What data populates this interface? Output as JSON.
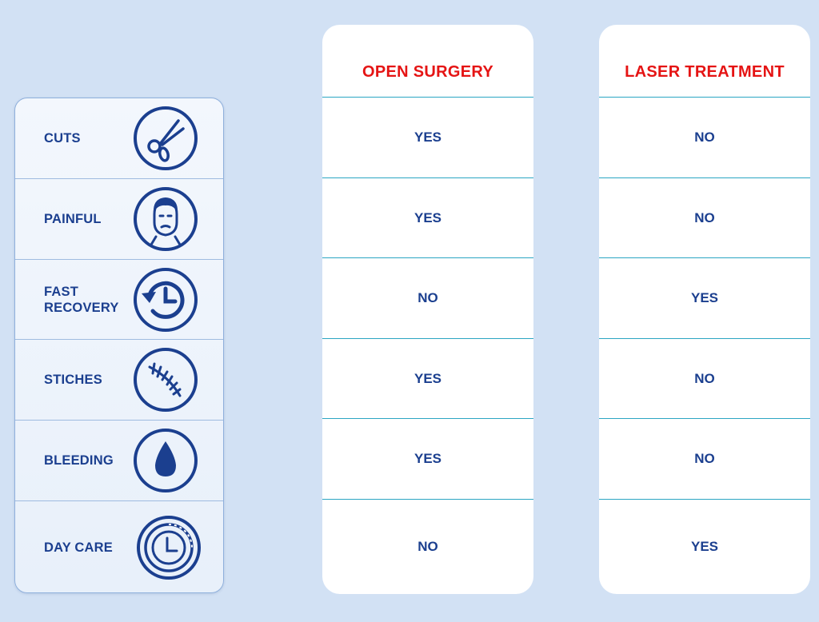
{
  "features": [
    {
      "label": "CUTS",
      "icon": "scissors-icon"
    },
    {
      "label": "PAINFUL",
      "icon": "pained-face-icon"
    },
    {
      "label": "FAST\nRECOVERY",
      "icon": "recovery-clock-icon"
    },
    {
      "label": "STICHES",
      "icon": "stitches-icon"
    },
    {
      "label": "BLEEDING",
      "icon": "blood-drop-icon"
    },
    {
      "label": "DAY CARE",
      "icon": "day-care-clock-icon"
    }
  ],
  "columns": [
    {
      "title": "OPEN SURGERY",
      "values": [
        "YES",
        "YES",
        "NO",
        "YES",
        "YES",
        "NO"
      ]
    },
    {
      "title": "LASER TREATMENT",
      "values": [
        "NO",
        "NO",
        "YES",
        "NO",
        "NO",
        "YES"
      ]
    }
  ],
  "colors": {
    "background": "#d2e1f4",
    "text_blue": "#1b3f8f",
    "heading_red": "#e51414",
    "divider_teal": "#2ba6c3"
  }
}
